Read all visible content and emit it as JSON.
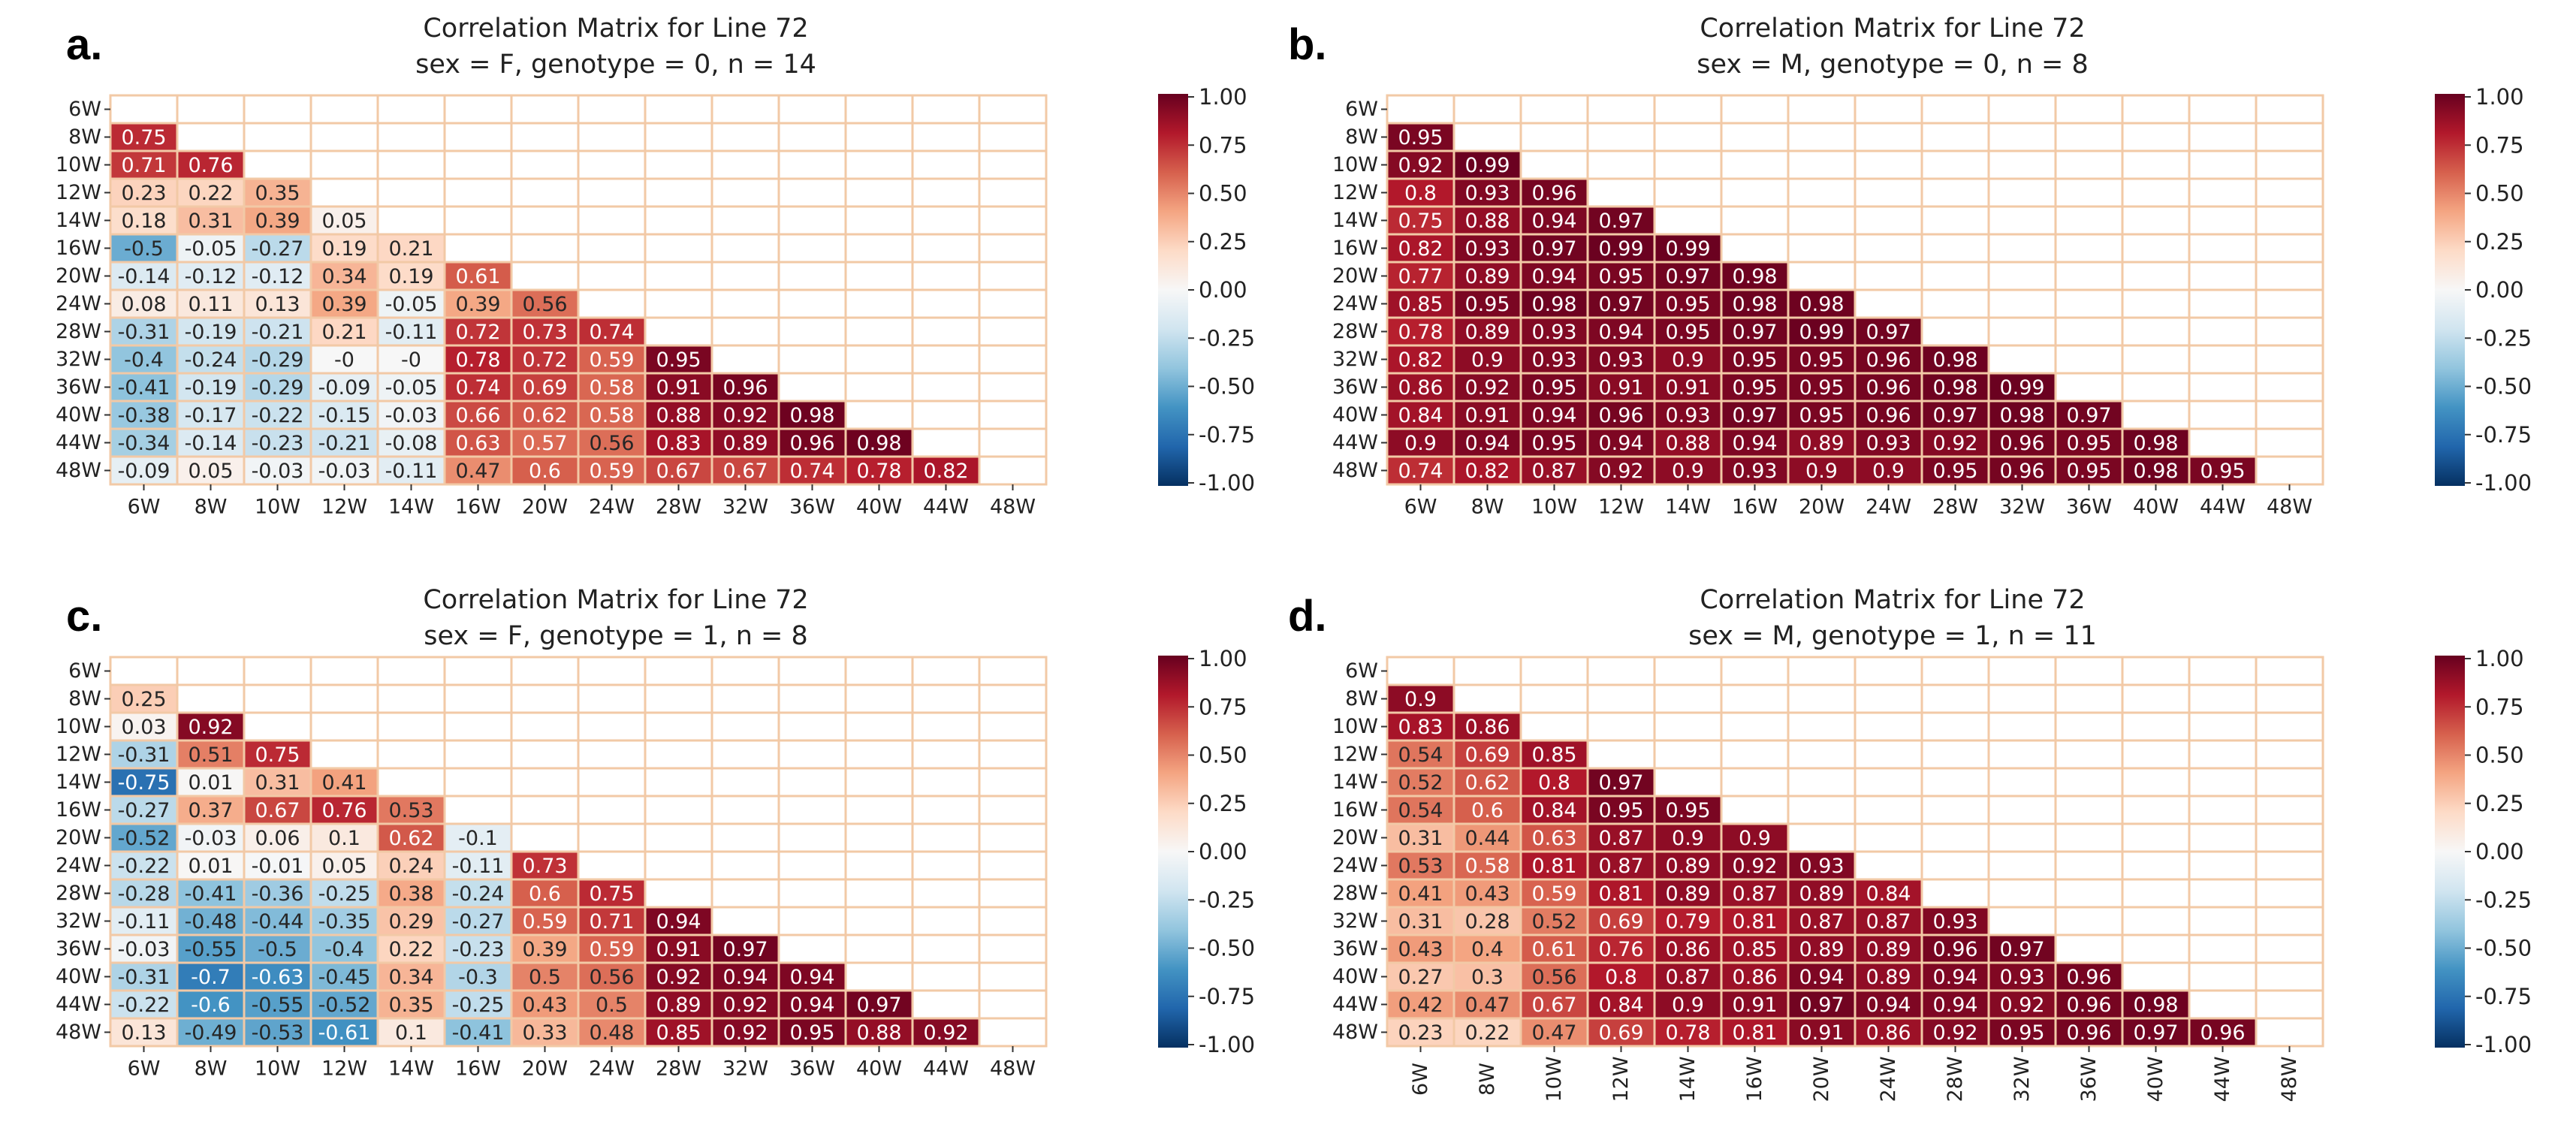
{
  "labels": [
    "6W",
    "8W",
    "10W",
    "12W",
    "14W",
    "16W",
    "20W",
    "24W",
    "28W",
    "32W",
    "36W",
    "40W",
    "44W",
    "48W"
  ],
  "colorbar": {
    "ticks": [
      "1.00",
      "0.75",
      "0.50",
      "0.25",
      "0.00",
      "-0.25",
      "-0.50",
      "-0.75",
      "-1.00"
    ],
    "stops": [
      "#053061",
      "#2166ac",
      "#4393c3",
      "#92c5de",
      "#d1e5f0",
      "#f7f7f7",
      "#fddbc7",
      "#f4a582",
      "#d6604d",
      "#b2182b",
      "#67001f"
    ],
    "grid_color": "#f2c9a6"
  },
  "chart_data": [
    {
      "panel_label": "a.",
      "type": "heatmap",
      "title": "Correlation Matrix for Line 72",
      "subtitle": "sex = F, genotype = 0, n = 14",
      "vmin": -1,
      "vmax": 1,
      "rows": [
        [],
        [
          "0.75"
        ],
        [
          "0.71",
          "0.76"
        ],
        [
          "0.23",
          "0.22",
          "0.35"
        ],
        [
          "0.18",
          "0.31",
          "0.39",
          "0.05"
        ],
        [
          "-0.5",
          "-0.05",
          "-0.27",
          "0.19",
          "0.21"
        ],
        [
          "-0.14",
          "-0.12",
          "-0.12",
          "0.34",
          "0.19",
          "0.61"
        ],
        [
          "0.08",
          "0.11",
          "0.13",
          "0.39",
          "-0.05",
          "0.39",
          "0.56"
        ],
        [
          "-0.31",
          "-0.19",
          "-0.21",
          "0.21",
          "-0.11",
          "0.72",
          "0.73",
          "0.74"
        ],
        [
          "-0.4",
          "-0.24",
          "-0.29",
          "-0",
          "-0",
          "0.78",
          "0.72",
          "0.59",
          "0.95"
        ],
        [
          "-0.41",
          "-0.19",
          "-0.29",
          "-0.09",
          "-0.05",
          "0.74",
          "0.69",
          "0.58",
          "0.91",
          "0.96"
        ],
        [
          "-0.38",
          "-0.17",
          "-0.22",
          "-0.15",
          "-0.03",
          "0.66",
          "0.62",
          "0.58",
          "0.88",
          "0.92",
          "0.98"
        ],
        [
          "-0.34",
          "-0.14",
          "-0.23",
          "-0.21",
          "-0.08",
          "0.63",
          "0.57",
          "0.56",
          "0.83",
          "0.89",
          "0.96",
          "0.98"
        ],
        [
          "-0.09",
          "0.05",
          "-0.03",
          "-0.03",
          "-0.11",
          "0.47",
          "0.6",
          "0.59",
          "0.67",
          "0.67",
          "0.74",
          "0.78",
          "0.82"
        ]
      ]
    },
    {
      "panel_label": "b.",
      "type": "heatmap",
      "title": "Correlation Matrix for Line 72",
      "subtitle": "sex = M, genotype = 0, n = 8",
      "vmin": -1,
      "vmax": 1,
      "rows": [
        [],
        [
          "0.95"
        ],
        [
          "0.92",
          "0.99"
        ],
        [
          "0.8",
          "0.93",
          "0.96"
        ],
        [
          "0.75",
          "0.88",
          "0.94",
          "0.97"
        ],
        [
          "0.82",
          "0.93",
          "0.97",
          "0.99",
          "0.99"
        ],
        [
          "0.77",
          "0.89",
          "0.94",
          "0.95",
          "0.97",
          "0.98"
        ],
        [
          "0.85",
          "0.95",
          "0.98",
          "0.97",
          "0.95",
          "0.98",
          "0.98"
        ],
        [
          "0.78",
          "0.89",
          "0.93",
          "0.94",
          "0.95",
          "0.97",
          "0.99",
          "0.97"
        ],
        [
          "0.82",
          "0.9",
          "0.93",
          "0.93",
          "0.9",
          "0.95",
          "0.95",
          "0.96",
          "0.98"
        ],
        [
          "0.86",
          "0.92",
          "0.95",
          "0.91",
          "0.91",
          "0.95",
          "0.95",
          "0.96",
          "0.98",
          "0.99"
        ],
        [
          "0.84",
          "0.91",
          "0.94",
          "0.96",
          "0.93",
          "0.97",
          "0.95",
          "0.96",
          "0.97",
          "0.98",
          "0.97"
        ],
        [
          "0.9",
          "0.94",
          "0.95",
          "0.94",
          "0.88",
          "0.94",
          "0.89",
          "0.93",
          "0.92",
          "0.96",
          "0.95",
          "0.98"
        ],
        [
          "0.74",
          "0.82",
          "0.87",
          "0.92",
          "0.9",
          "0.93",
          "0.9",
          "0.9",
          "0.95",
          "0.96",
          "0.95",
          "0.98",
          "0.95"
        ]
      ]
    },
    {
      "panel_label": "c.",
      "type": "heatmap",
      "title": "Correlation Matrix for Line 72",
      "subtitle": "sex = F, genotype = 1, n = 8",
      "vmin": -1,
      "vmax": 1,
      "rows": [
        [],
        [
          "0.25"
        ],
        [
          "0.03",
          "0.92"
        ],
        [
          "-0.31",
          "0.51",
          "0.75"
        ],
        [
          "-0.75",
          "0.01",
          "0.31",
          "0.41"
        ],
        [
          "-0.27",
          "0.37",
          "0.67",
          "0.76",
          "0.53"
        ],
        [
          "-0.52",
          "-0.03",
          "0.06",
          "0.1",
          "0.62",
          "-0.1"
        ],
        [
          "-0.22",
          "0.01",
          "-0.01",
          "0.05",
          "0.24",
          "-0.11",
          "0.73"
        ],
        [
          "-0.28",
          "-0.41",
          "-0.36",
          "-0.25",
          "0.38",
          "-0.24",
          "0.6",
          "0.75"
        ],
        [
          "-0.11",
          "-0.48",
          "-0.44",
          "-0.35",
          "0.29",
          "-0.27",
          "0.59",
          "0.71",
          "0.94"
        ],
        [
          "-0.03",
          "-0.55",
          "-0.5",
          "-0.4",
          "0.22",
          "-0.23",
          "0.39",
          "0.59",
          "0.91",
          "0.97"
        ],
        [
          "-0.31",
          "-0.7",
          "-0.63",
          "-0.45",
          "0.34",
          "-0.3",
          "0.5",
          "0.56",
          "0.92",
          "0.94",
          "0.94"
        ],
        [
          "-0.22",
          "-0.6",
          "-0.55",
          "-0.52",
          "0.35",
          "-0.25",
          "0.43",
          "0.5",
          "0.89",
          "0.92",
          "0.94",
          "0.97"
        ],
        [
          "0.13",
          "-0.49",
          "-0.53",
          "-0.61",
          "0.1",
          "-0.41",
          "0.33",
          "0.48",
          "0.85",
          "0.92",
          "0.95",
          "0.88",
          "0.92"
        ]
      ]
    },
    {
      "panel_label": "d.",
      "type": "heatmap",
      "title": "Correlation Matrix for Line 72",
      "subtitle": "sex = M, genotype = 1, n = 11",
      "vmin": -1,
      "vmax": 1,
      "rotate_x_labels": true,
      "rows": [
        [],
        [
          "0.9"
        ],
        [
          "0.83",
          "0.86"
        ],
        [
          "0.54",
          "0.69",
          "0.85"
        ],
        [
          "0.52",
          "0.62",
          "0.8",
          "0.97"
        ],
        [
          "0.54",
          "0.6",
          "0.84",
          "0.95",
          "0.95"
        ],
        [
          "0.31",
          "0.44",
          "0.63",
          "0.87",
          "0.9",
          "0.9"
        ],
        [
          "0.53",
          "0.58",
          "0.81",
          "0.87",
          "0.89",
          "0.92",
          "0.93"
        ],
        [
          "0.41",
          "0.43",
          "0.59",
          "0.81",
          "0.89",
          "0.87",
          "0.89",
          "0.84"
        ],
        [
          "0.31",
          "0.28",
          "0.52",
          "0.69",
          "0.79",
          "0.81",
          "0.87",
          "0.87",
          "0.93"
        ],
        [
          "0.43",
          "0.4",
          "0.61",
          "0.76",
          "0.86",
          "0.85",
          "0.89",
          "0.89",
          "0.96",
          "0.97"
        ],
        [
          "0.27",
          "0.3",
          "0.56",
          "0.8",
          "0.87",
          "0.86",
          "0.94",
          "0.89",
          "0.94",
          "0.93",
          "0.96"
        ],
        [
          "0.42",
          "0.47",
          "0.67",
          "0.84",
          "0.9",
          "0.91",
          "0.97",
          "0.94",
          "0.94",
          "0.92",
          "0.96",
          "0.98"
        ],
        [
          "0.23",
          "0.22",
          "0.47",
          "0.69",
          "0.78",
          "0.81",
          "0.91",
          "0.86",
          "0.92",
          "0.95",
          "0.96",
          "0.97",
          "0.96"
        ]
      ]
    }
  ]
}
